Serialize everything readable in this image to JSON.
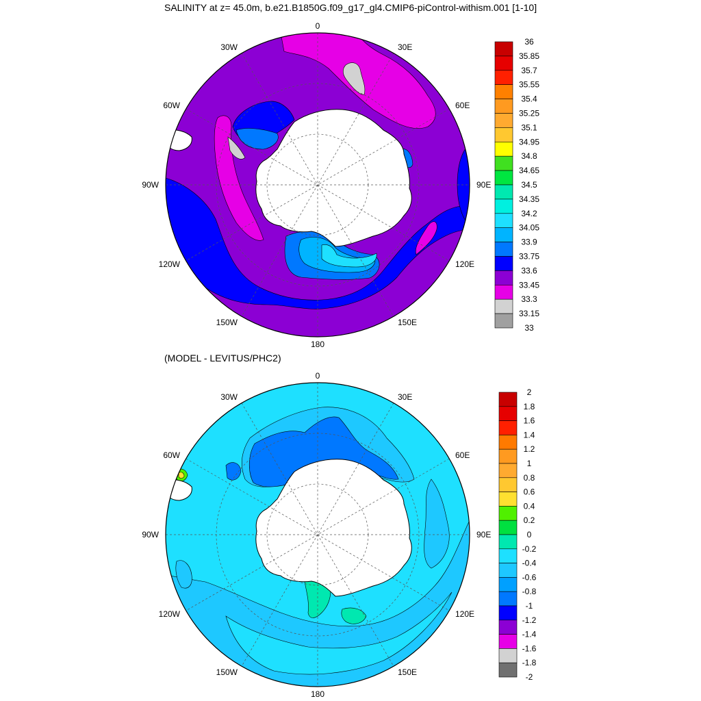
{
  "titles": {
    "main": "SALINITY at z=  45.0m, b.e21.B1850G.f09_g17_gl4.CMIP6-piControl-withism.001 [1-10]",
    "diff": "(MODEL - LEVITUS/PHC2)"
  },
  "lon_labels": [
    "0",
    "30E",
    "60E",
    "90E",
    "120E",
    "150E",
    "180",
    "150W",
    "120W",
    "90W",
    "60W",
    "30W"
  ],
  "salinity_colorbar": {
    "labels": [
      "36",
      "35.85",
      "35.7",
      "35.55",
      "35.4",
      "35.25",
      "35.1",
      "34.95",
      "34.8",
      "34.65",
      "34.5",
      "34.35",
      "34.2",
      "34.05",
      "33.9",
      "33.75",
      "33.6",
      "33.45",
      "33.3",
      "33.15",
      "33"
    ],
    "colors": [
      "#c80000",
      "#e60000",
      "#ff2000",
      "#ff8000",
      "#ff9a20",
      "#ffaa30",
      "#ffc830",
      "#ffff00",
      "#40e020",
      "#00e640",
      "#00e8b0",
      "#00f0e0",
      "#1ee0ff",
      "#00b4ff",
      "#0078ff",
      "#0000ff",
      "#8c00d4",
      "#e600e6",
      "#d2d2d2",
      "#a0a0a0"
    ]
  },
  "difference_colorbar": {
    "labels": [
      "2",
      "1.8",
      "1.6",
      "1.4",
      "1.2",
      "1",
      "0.8",
      "0.6",
      "0.4",
      "0.2",
      "0",
      "-0.2",
      "-0.4",
      "-0.6",
      "-0.8",
      "-1",
      "-1.2",
      "-1.4",
      "-1.6",
      "-1.8",
      "-2"
    ],
    "colors": [
      "#c80000",
      "#e60000",
      "#ff2000",
      "#ff7a00",
      "#ff9a20",
      "#ffaa30",
      "#ffc830",
      "#ffe030",
      "#50f000",
      "#00e040",
      "#00e8b0",
      "#1ee0ff",
      "#1ec8ff",
      "#00a0ff",
      "#0078ff",
      "#0000ff",
      "#8c00d4",
      "#e600e6",
      "#d2d2d2",
      "#707070"
    ]
  },
  "colors": {
    "land": "#ffffff",
    "outline": "#000000",
    "grid": "#555555"
  }
}
